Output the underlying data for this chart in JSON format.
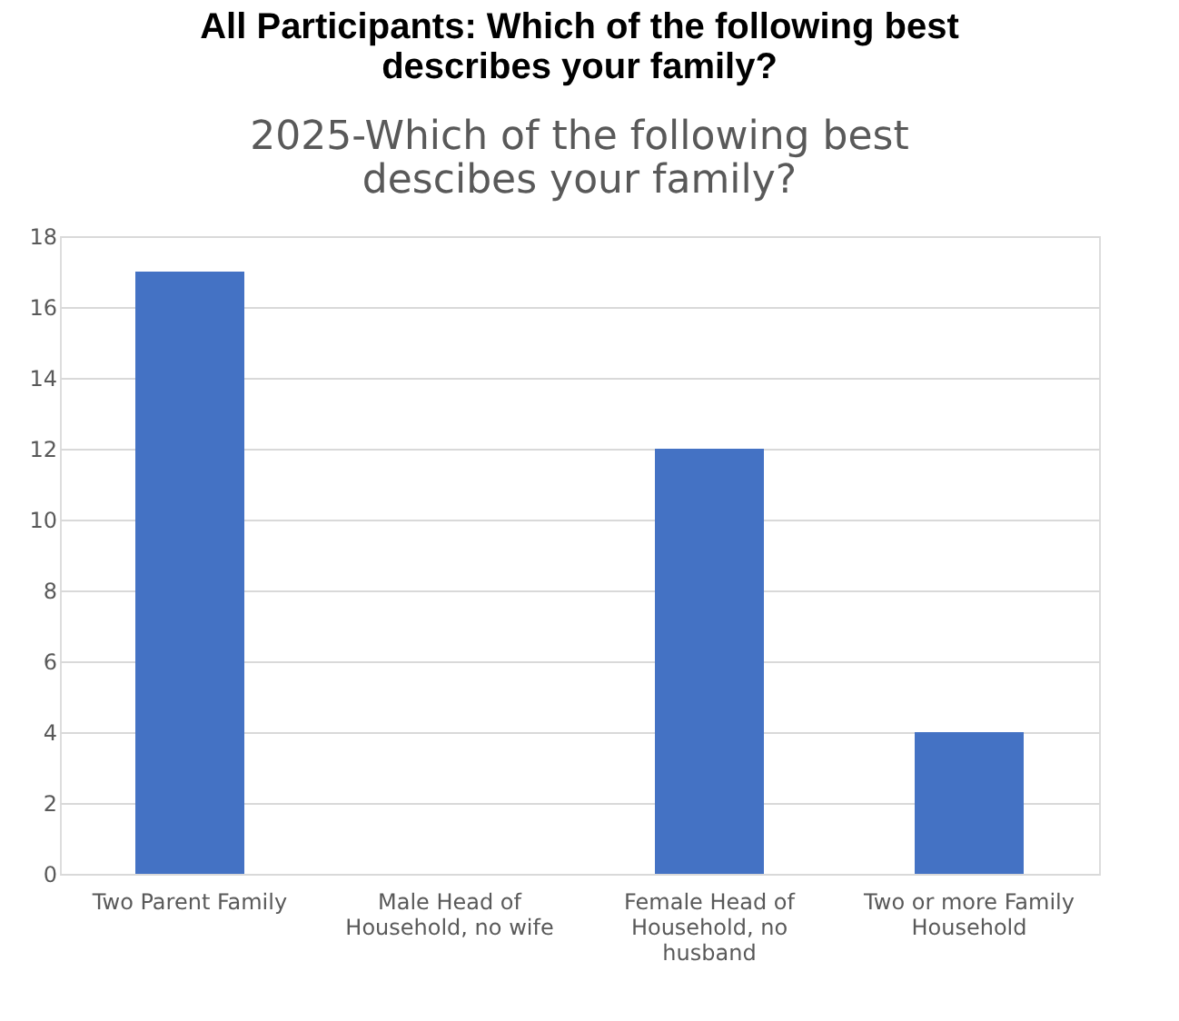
{
  "chart_data": {
    "type": "bar",
    "title": "All Participants: Which of the following best describes your family?",
    "subtitle": "2025-Which of the following best descibes your family?",
    "categories": [
      "Two Parent Family",
      "Male Head of Household, no wife",
      "Female Head of Household, no husband",
      "Two or more Family Household"
    ],
    "values": [
      17,
      0,
      12,
      4
    ],
    "color": "#4472c4",
    "ylim": [
      0,
      18
    ],
    "yticks": [
      0,
      2,
      4,
      6,
      8,
      10,
      12,
      14,
      16,
      18
    ],
    "grid": "y"
  }
}
